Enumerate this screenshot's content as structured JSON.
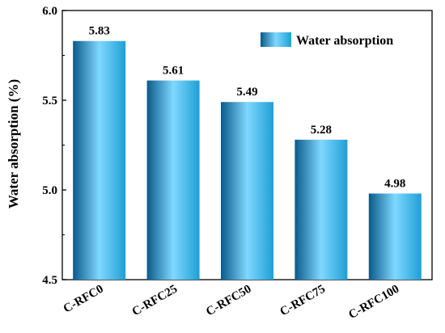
{
  "chart_data": {
    "type": "bar",
    "categories": [
      "C-RFC0",
      "C-RFC25",
      "C-RFC50",
      "C-RFC75",
      "C-RFC100"
    ],
    "series": [
      {
        "name": "Water absorption",
        "values": [
          5.83,
          5.61,
          5.49,
          5.28,
          4.98
        ]
      }
    ],
    "data_labels": [
      "5.83",
      "5.61",
      "5.49",
      "5.28",
      "4.98"
    ],
    "title": "",
    "xlabel": "",
    "ylabel": "Water absorption (%)",
    "ylim": [
      4.5,
      6.0
    ],
    "yticks": [
      "4.5",
      "5.0",
      "5.5",
      "6.0"
    ],
    "grid": false,
    "legend_position": "top-right",
    "bar_color": "#1e9fd6",
    "bar_color_highlight": "#7fd8ff",
    "bar_color_shadow": "#0a5a8a"
  }
}
